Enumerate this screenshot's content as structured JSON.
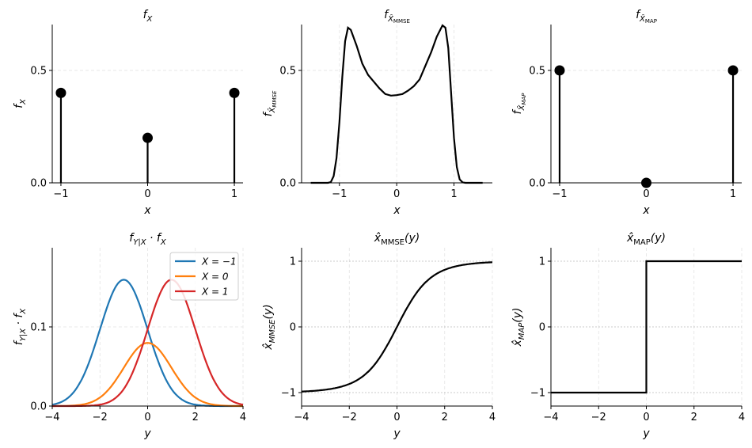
{
  "chart_data": [
    {
      "type": "stem",
      "title": {
        "main": "f",
        "sub": "X"
      },
      "xlabel": "x",
      "ylabel": {
        "main": "f",
        "sub": "X"
      },
      "x": [
        -1,
        0,
        1
      ],
      "values": [
        0.4,
        0.2,
        0.4
      ],
      "xlim": [
        -1.1,
        1.1
      ],
      "ylim": [
        0,
        0.704
      ],
      "xticks": [
        -1,
        0,
        1
      ],
      "xticklabels": [
        "−1",
        "0",
        "1"
      ],
      "yticks": [
        0,
        0.5
      ],
      "yticklabels": [
        "0.0",
        "0.5"
      ],
      "grid": "y"
    },
    {
      "type": "line",
      "title": {
        "main": "f",
        "sub": "X̂",
        "subsub": "MMSE"
      },
      "xlabel": "x",
      "ylabel": {
        "main": "f",
        "sub": "X̂",
        "subsub": "MMSE"
      },
      "x": [
        -1.5,
        -1.2,
        -1.15,
        -1.1,
        -1.05,
        -1.0,
        -0.95,
        -0.9,
        -0.85,
        -0.8,
        -0.7,
        -0.6,
        -0.5,
        -0.4,
        -0.3,
        -0.2,
        -0.1,
        0,
        0.1,
        0.2,
        0.3,
        0.4,
        0.5,
        0.6,
        0.7,
        0.8,
        0.85,
        0.9,
        0.95,
        1.0,
        1.05,
        1.1,
        1.15,
        1.2,
        1.5
      ],
      "values": [
        0,
        0,
        0.003,
        0.03,
        0.11,
        0.27,
        0.47,
        0.63,
        0.69,
        0.68,
        0.61,
        0.53,
        0.48,
        0.45,
        0.42,
        0.395,
        0.388,
        0.39,
        0.395,
        0.41,
        0.43,
        0.46,
        0.52,
        0.58,
        0.65,
        0.7,
        0.69,
        0.6,
        0.4,
        0.2,
        0.07,
        0.015,
        0.002,
        0,
        0
      ],
      "xlim": [
        -1.66,
        1.67
      ],
      "ylim": [
        0,
        0.704
      ],
      "xticks": [
        -1,
        0,
        1
      ],
      "xticklabels": [
        "−1",
        "0",
        "1"
      ],
      "yticks": [
        0,
        0.5
      ],
      "yticklabels": [
        "0.0",
        "0.5"
      ],
      "grid": "both"
    },
    {
      "type": "stem",
      "title": {
        "main": "f",
        "sub": "X̂",
        "subsub": "MAP"
      },
      "xlabel": "x",
      "ylabel": {
        "main": "f",
        "sub": "X̂",
        "subsub": "MAP"
      },
      "x": [
        -1,
        0,
        1
      ],
      "values": [
        0.5,
        0.0,
        0.5
      ],
      "xlim": [
        -1.1,
        1.1
      ],
      "ylim": [
        0,
        0.704
      ],
      "xticks": [
        -1,
        0,
        1
      ],
      "xticklabels": [
        "−1",
        "0",
        "1"
      ],
      "yticks": [
        0,
        0.5
      ],
      "yticklabels": [
        "0.0",
        "0.5"
      ],
      "grid": "y"
    },
    {
      "type": "line",
      "title": {
        "main": "f",
        "sub": "Y|X",
        "tail": " · f",
        "sub2": "X"
      },
      "xlabel": "y",
      "ylabel": {
        "main": "f",
        "sub": "Y|X",
        "tail": " · f",
        "sub2": "X"
      },
      "series": [
        {
          "name": "X = −1",
          "weight": 0.4,
          "mean": -1,
          "std": 1,
          "color": "#1f77b4"
        },
        {
          "name": "X = 0",
          "weight": 0.2,
          "mean": 0,
          "std": 1,
          "color": "#ff7f0e"
        },
        {
          "name": "X = 1",
          "weight": 0.4,
          "mean": 1,
          "std": 1,
          "color": "#d62728"
        }
      ],
      "xlim": [
        -4,
        4
      ],
      "ylim": [
        0,
        0.2
      ],
      "xticks": [
        -4,
        -2,
        0,
        2,
        4
      ],
      "xticklabels": [
        "−4",
        "−2",
        "0",
        "2",
        "4"
      ],
      "yticks": [
        0,
        0.1
      ],
      "yticklabels": [
        "0.0",
        "0.1"
      ],
      "legend": "top-right",
      "grid": "both"
    },
    {
      "type": "line",
      "title": {
        "main": "x̂",
        "sub": "MMSE",
        "tail": "(y)"
      },
      "xlabel": "y",
      "ylabel": {
        "main": "x̂",
        "sub": "MMSE",
        "tail": "(y)"
      },
      "function": "posterior mean of X given y",
      "xlim": [
        -4,
        4
      ],
      "ylim": [
        -1.205,
        1.205
      ],
      "xticks": [
        -4,
        -2,
        0,
        2,
        4
      ],
      "xticklabels": [
        "−4",
        "−2",
        "0",
        "2",
        "4"
      ],
      "yticks": [
        -1,
        0,
        1
      ],
      "yticklabels": [
        "−1",
        "0",
        "1"
      ],
      "grid": "both"
    },
    {
      "type": "line",
      "title": {
        "main": "x̂",
        "sub": "MAP",
        "tail": "(y)"
      },
      "xlabel": "y",
      "ylabel": {
        "main": "x̂",
        "sub": "MAP",
        "tail": "(y)"
      },
      "x": [
        -4,
        0,
        0,
        4
      ],
      "values": [
        -1,
        -1,
        1,
        1
      ],
      "xlim": [
        -4,
        4
      ],
      "ylim": [
        -1.205,
        1.205
      ],
      "xticks": [
        -4,
        -2,
        0,
        2,
        4
      ],
      "xticklabels": [
        "−4",
        "−2",
        "0",
        "2",
        "4"
      ],
      "yticks": [
        -1,
        0,
        1
      ],
      "yticklabels": [
        "−1",
        "0",
        "1"
      ],
      "grid": "both"
    }
  ]
}
